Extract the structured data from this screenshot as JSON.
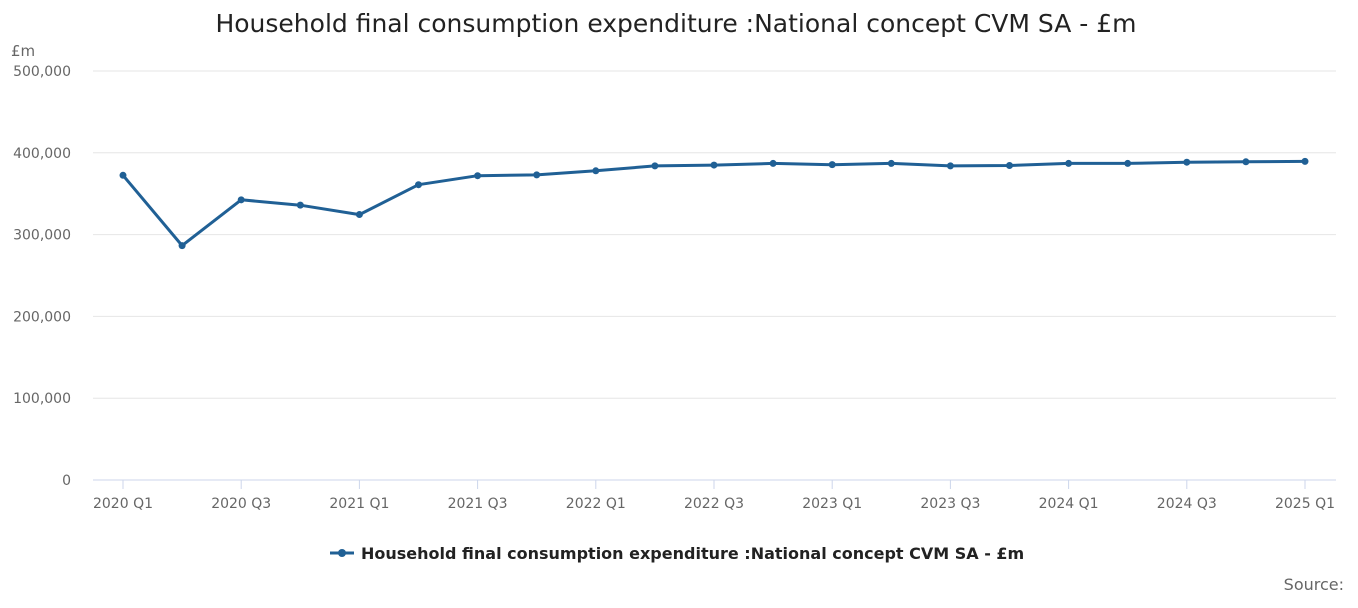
{
  "chart_data": {
    "type": "line",
    "title": "Household final consumption expenditure :National concept CVM SA - £m",
    "ylabel": "£m",
    "ylim": [
      0,
      500000
    ],
    "yticks": [
      0,
      100000,
      200000,
      300000,
      400000,
      500000
    ],
    "ytick_labels": [
      "0",
      "100,000",
      "200,000",
      "300,000",
      "400,000",
      "500,000"
    ],
    "grid": true,
    "categories": [
      "2020 Q1",
      "2020 Q2",
      "2020 Q3",
      "2020 Q4",
      "2021 Q1",
      "2021 Q2",
      "2021 Q3",
      "2021 Q4",
      "2022 Q1",
      "2022 Q2",
      "2022 Q3",
      "2022 Q4",
      "2023 Q1",
      "2023 Q2",
      "2023 Q3",
      "2023 Q4",
      "2024 Q1",
      "2024 Q2",
      "2024 Q3",
      "2024 Q4",
      "2025 Q1"
    ],
    "x_tick_labels": [
      "2020 Q1",
      "2020 Q3",
      "2021 Q1",
      "2021 Q3",
      "2022 Q1",
      "2022 Q3",
      "2023 Q1",
      "2023 Q3",
      "2024 Q1",
      "2024 Q3",
      "2025 Q1"
    ],
    "series": [
      {
        "name": "Household final consumption expenditure :National concept CVM SA - £m",
        "color": "#206095",
        "values": [
          372500,
          286500,
          342500,
          336000,
          324500,
          361000,
          372000,
          373000,
          378000,
          384000,
          385000,
          387000,
          385500,
          387000,
          384000,
          384500,
          387000,
          387000,
          388500,
          389000,
          389500
        ]
      }
    ],
    "legend_position": "bottom-center",
    "source_label": "Source:"
  }
}
